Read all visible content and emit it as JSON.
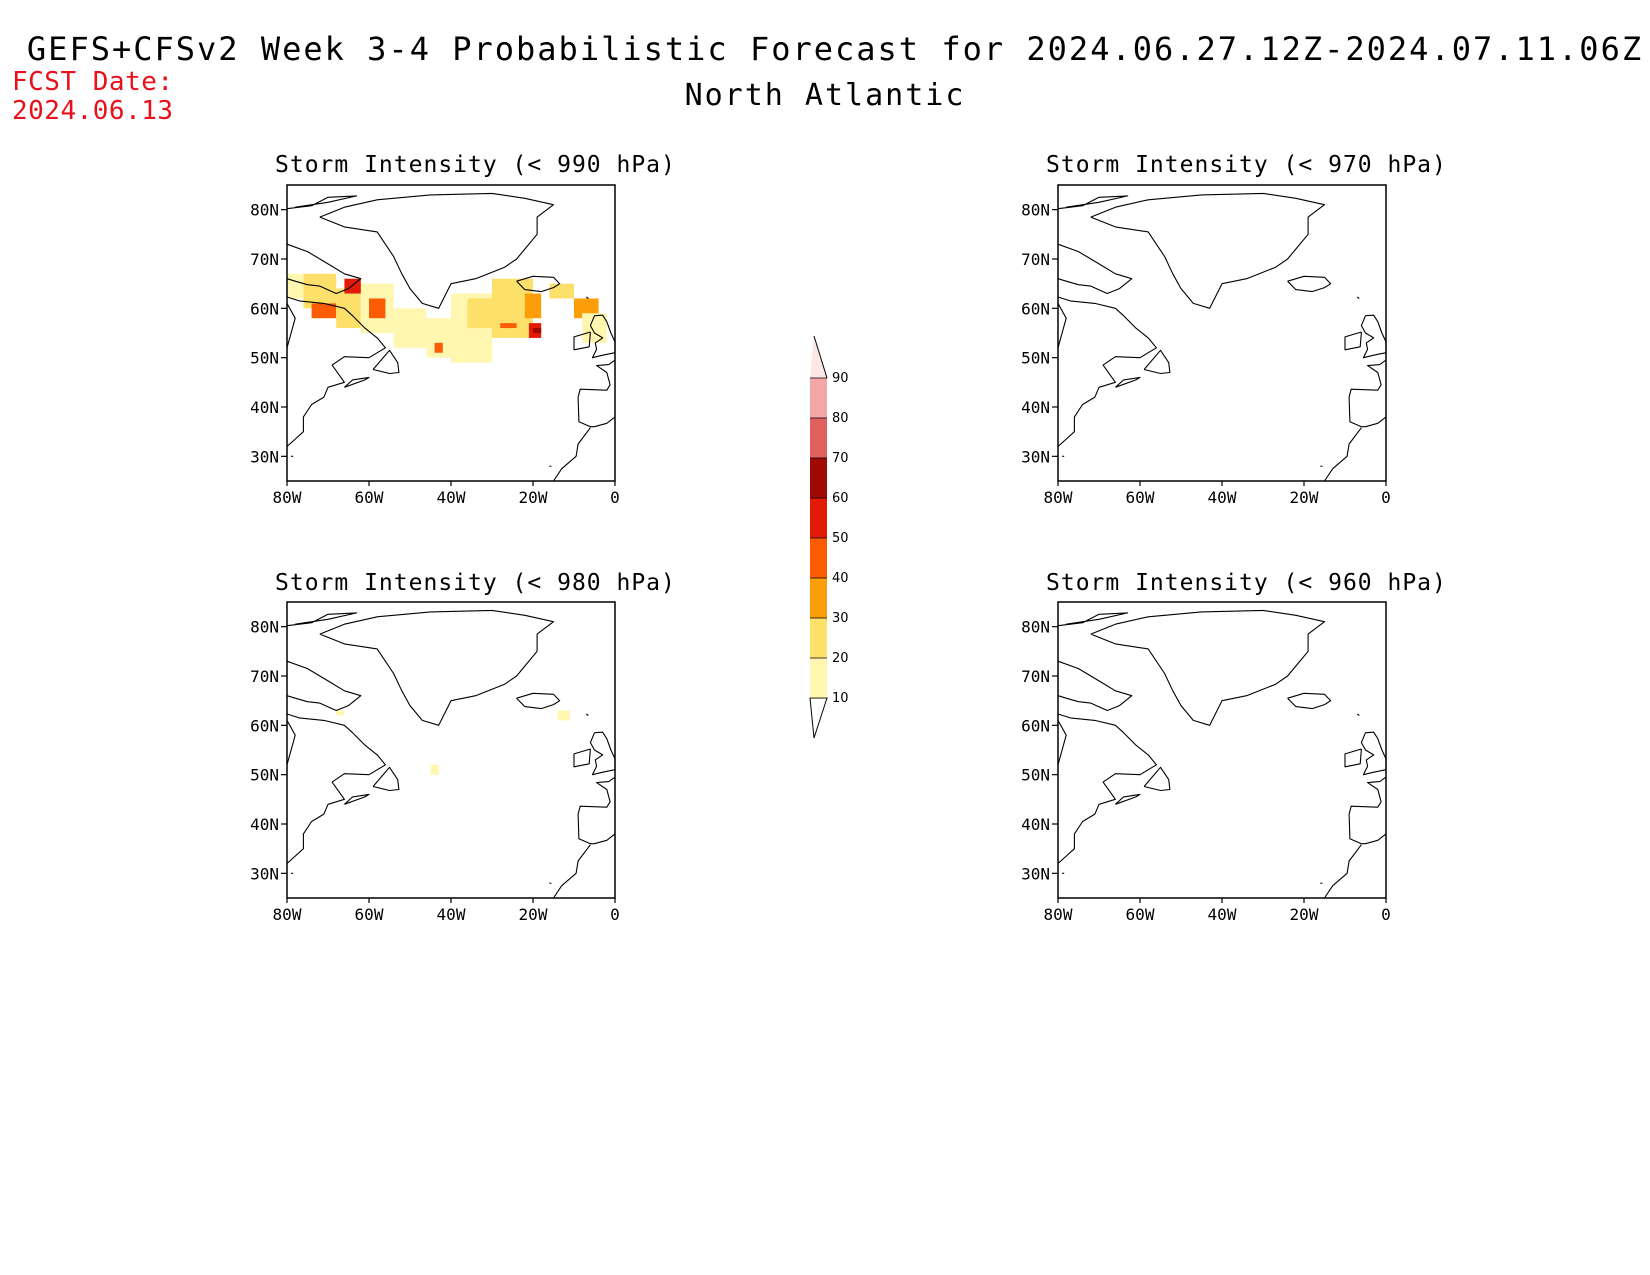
{
  "header": {
    "title": "GEFS+CFSv2 Week 3-4 Probabilistic Forecast for 2024.06.27.12Z-2024.07.11.06Z",
    "region": "North Atlantic",
    "fcst_label": "FCST Date:",
    "fcst_date": "2024.06.13"
  },
  "panels": [
    {
      "id": "p990",
      "title": "Storm Intensity (< 990 hPa)"
    },
    {
      "id": "p970",
      "title": "Storm Intensity (< 970 hPa)"
    },
    {
      "id": "p980",
      "title": "Storm Intensity (< 980 hPa)"
    },
    {
      "id": "p960",
      "title": "Storm Intensity (< 960 hPa)"
    }
  ],
  "axes": {
    "lat_ticks": [
      "80N",
      "70N",
      "60N",
      "50N",
      "40N",
      "30N"
    ],
    "lon_ticks": [
      "80W",
      "60W",
      "40W",
      "20W",
      "0"
    ],
    "lat_range": [
      25,
      85
    ],
    "lon_range": [
      -80,
      0
    ]
  },
  "colorbar": {
    "labels": [
      "10",
      "20",
      "30",
      "40",
      "50",
      "60",
      "70",
      "80",
      "90"
    ],
    "colors": [
      "#fff7b0",
      "#fde06a",
      "#fc9d0a",
      "#fc5d04",
      "#e21a06",
      "#a00a06",
      "#e06060",
      "#f4a6a6",
      "#fde6e6"
    ]
  },
  "chart_data": {
    "type": "heatmap",
    "units": "probability (%)",
    "panels": {
      "p990": [
        {
          "lon": -80,
          "lat": 62,
          "w": 4,
          "h": 5,
          "v": 15
        },
        {
          "lon": -76,
          "lat": 60,
          "w": 8,
          "h": 7,
          "v": 25
        },
        {
          "lon": -74,
          "lat": 58,
          "w": 6,
          "h": 3,
          "v": 45
        },
        {
          "lon": -68,
          "lat": 56,
          "w": 6,
          "h": 8,
          "v": 20
        },
        {
          "lon": -62,
          "lat": 55,
          "w": 8,
          "h": 10,
          "v": 15
        },
        {
          "lon": -60,
          "lat": 58,
          "w": 4,
          "h": 4,
          "v": 40
        },
        {
          "lon": -66,
          "lat": 63,
          "w": 4,
          "h": 3,
          "v": 55
        },
        {
          "lon": -54,
          "lat": 52,
          "w": 8,
          "h": 8,
          "v": 15
        },
        {
          "lon": -46,
          "lat": 50,
          "w": 6,
          "h": 8,
          "v": 15
        },
        {
          "lon": -44,
          "lat": 51,
          "w": 2,
          "h": 2,
          "v": 40
        },
        {
          "lon": -40,
          "lat": 49,
          "w": 10,
          "h": 14,
          "v": 15
        },
        {
          "lon": -36,
          "lat": 56,
          "w": 6,
          "h": 6,
          "v": 25
        },
        {
          "lon": -30,
          "lat": 54,
          "w": 10,
          "h": 12,
          "v": 20
        },
        {
          "lon": -28,
          "lat": 56,
          "w": 4,
          "h": 1,
          "v": 45
        },
        {
          "lon": -22,
          "lat": 58,
          "w": 4,
          "h": 5,
          "v": 35
        },
        {
          "lon": -21,
          "lat": 54,
          "w": 3,
          "h": 3,
          "v": 55
        },
        {
          "lon": -20,
          "lat": 55,
          "w": 2,
          "h": 1,
          "v": 65
        },
        {
          "lon": -16,
          "lat": 62,
          "w": 6,
          "h": 3,
          "v": 25
        },
        {
          "lon": -10,
          "lat": 58,
          "w": 6,
          "h": 4,
          "v": 30
        },
        {
          "lon": -8,
          "lat": 53,
          "w": 6,
          "h": 6,
          "v": 15
        }
      ],
      "p970": [],
      "p980": [
        {
          "lon": -68,
          "lat": 62,
          "w": 2,
          "h": 1,
          "v": 15
        },
        {
          "lon": -45,
          "lat": 50,
          "w": 2,
          "h": 2,
          "v": 15
        },
        {
          "lon": -14,
          "lat": 61,
          "w": 3,
          "h": 2,
          "v": 15
        }
      ],
      "p960": []
    }
  }
}
